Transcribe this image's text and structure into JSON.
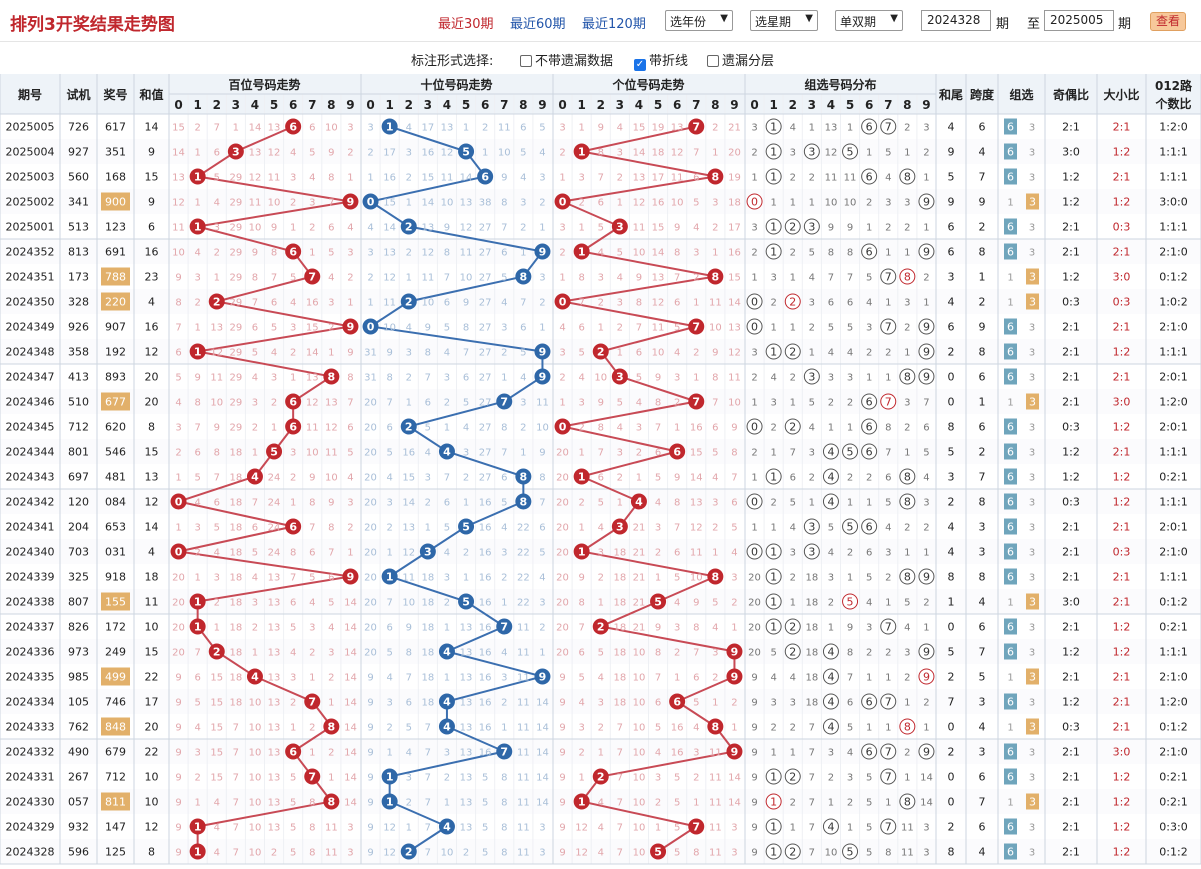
{
  "header": {
    "title": "排列3开奖结果走势图",
    "range_links": [
      "最近30期",
      "最近60期",
      "最近120期"
    ],
    "active_range": 0,
    "select_year": "选年份",
    "select_week": "选星期",
    "select_oddeven": "单双期",
    "from_label": "期",
    "to_label": "至",
    "to_label2": "期",
    "from_value": "2024328",
    "to_value": "2025005",
    "query_button": "查看"
  },
  "options": {
    "label": "标注形式选择:",
    "no_miss": "不带遗漏数据",
    "with_line": "带折线",
    "miss_layer": "遗漏分层"
  },
  "columns": {
    "period": "期号",
    "trial": "试机",
    "prize": "奖号",
    "sum": "和值",
    "hundreds": "百位号码走势",
    "tens": "十位号码走势",
    "units": "个位号码走势",
    "group": "组选号码分布",
    "sum_tail": "和尾",
    "span": "跨度",
    "group_type": "组选",
    "odd_even": "奇偶比",
    "big_small": "大小比",
    "mod3": "012路",
    "mod3_sub": "个数比"
  },
  "digits": [
    "0",
    "1",
    "2",
    "3",
    "4",
    "5",
    "6",
    "7",
    "8",
    "9"
  ],
  "chart_data": {
    "type": "table",
    "rows": [
      {
        "p": "2025005",
        "t": "726",
        "n": "617",
        "s": "14",
        "gt": "6",
        "oe": "2:1",
        "bs": "2:1",
        "m": "1:2:0"
      },
      {
        "p": "2025004",
        "t": "927",
        "n": "351",
        "s": "9",
        "gt": "6",
        "oe": "3:0",
        "bs": "1:2",
        "m": "1:1:1"
      },
      {
        "p": "2025003",
        "t": "560",
        "n": "168",
        "s": "15",
        "gt": "6",
        "oe": "1:2",
        "bs": "2:1",
        "m": "1:1:1"
      },
      {
        "p": "2025002",
        "t": "341",
        "n": "900",
        "s": "9",
        "gt": "3",
        "oe": "1:2",
        "bs": "1:2",
        "m": "3:0:0"
      },
      {
        "p": "2025001",
        "t": "513",
        "n": "123",
        "s": "6",
        "gt": "6",
        "oe": "2:1",
        "bs": "0:3",
        "m": "1:1:1"
      },
      {
        "p": "2024352",
        "t": "813",
        "n": "691",
        "s": "16",
        "gt": "6",
        "oe": "2:1",
        "bs": "2:1",
        "m": "2:1:0"
      },
      {
        "p": "2024351",
        "t": "173",
        "n": "788",
        "s": "23",
        "gt": "3",
        "oe": "1:2",
        "bs": "3:0",
        "m": "0:1:2"
      },
      {
        "p": "2024350",
        "t": "328",
        "n": "220",
        "s": "4",
        "gt": "3",
        "oe": "0:3",
        "bs": "0:3",
        "m": "1:0:2"
      },
      {
        "p": "2024349",
        "t": "926",
        "n": "907",
        "s": "16",
        "gt": "6",
        "oe": "2:1",
        "bs": "2:1",
        "m": "2:1:0"
      },
      {
        "p": "2024348",
        "t": "358",
        "n": "192",
        "s": "12",
        "gt": "6",
        "oe": "2:1",
        "bs": "1:2",
        "m": "1:1:1"
      },
      {
        "p": "2024347",
        "t": "413",
        "n": "893",
        "s": "20",
        "gt": "6",
        "oe": "2:1",
        "bs": "2:1",
        "m": "2:0:1"
      },
      {
        "p": "2024346",
        "t": "510",
        "n": "677",
        "s": "20",
        "gt": "3",
        "oe": "2:1",
        "bs": "3:0",
        "m": "1:2:0"
      },
      {
        "p": "2024345",
        "t": "712",
        "n": "620",
        "s": "8",
        "gt": "6",
        "oe": "0:3",
        "bs": "1:2",
        "m": "2:0:1"
      },
      {
        "p": "2024344",
        "t": "801",
        "n": "546",
        "s": "15",
        "gt": "6",
        "oe": "1:2",
        "bs": "2:1",
        "m": "1:1:1"
      },
      {
        "p": "2024343",
        "t": "697",
        "n": "481",
        "s": "13",
        "gt": "6",
        "oe": "1:2",
        "bs": "1:2",
        "m": "0:2:1"
      },
      {
        "p": "2024342",
        "t": "120",
        "n": "084",
        "s": "12",
        "gt": "6",
        "oe": "0:3",
        "bs": "1:2",
        "m": "1:1:1"
      },
      {
        "p": "2024341",
        "t": "204",
        "n": "653",
        "s": "14",
        "gt": "6",
        "oe": "2:1",
        "bs": "2:1",
        "m": "2:0:1"
      },
      {
        "p": "2024340",
        "t": "703",
        "n": "031",
        "s": "4",
        "gt": "6",
        "oe": "2:1",
        "bs": "0:3",
        "m": "2:1:0"
      },
      {
        "p": "2024339",
        "t": "325",
        "n": "918",
        "s": "18",
        "gt": "6",
        "oe": "2:1",
        "bs": "2:1",
        "m": "1:1:1"
      },
      {
        "p": "2024338",
        "t": "807",
        "n": "155",
        "s": "11",
        "gt": "3",
        "oe": "3:0",
        "bs": "2:1",
        "m": "0:1:2"
      },
      {
        "p": "2024337",
        "t": "826",
        "n": "172",
        "s": "10",
        "gt": "6",
        "oe": "2:1",
        "bs": "1:2",
        "m": "0:2:1"
      },
      {
        "p": "2024336",
        "t": "973",
        "n": "249",
        "s": "15",
        "gt": "6",
        "oe": "1:2",
        "bs": "1:2",
        "m": "1:1:1"
      },
      {
        "p": "2024335",
        "t": "985",
        "n": "499",
        "s": "22",
        "gt": "3",
        "oe": "2:1",
        "bs": "2:1",
        "m": "2:1:0"
      },
      {
        "p": "2024334",
        "t": "105",
        "n": "746",
        "s": "17",
        "gt": "6",
        "oe": "1:2",
        "bs": "2:1",
        "m": "1:2:0"
      },
      {
        "p": "2024333",
        "t": "762",
        "n": "848",
        "s": "20",
        "gt": "3",
        "oe": "0:3",
        "bs": "2:1",
        "m": "0:1:2"
      },
      {
        "p": "2024332",
        "t": "490",
        "n": "679",
        "s": "22",
        "gt": "6",
        "oe": "2:1",
        "bs": "3:0",
        "m": "2:1:0"
      },
      {
        "p": "2024331",
        "t": "267",
        "n": "712",
        "s": "10",
        "gt": "6",
        "oe": "2:1",
        "bs": "1:2",
        "m": "0:2:1"
      },
      {
        "p": "2024330",
        "t": "057",
        "n": "811",
        "s": "10",
        "gt": "3",
        "oe": "2:1",
        "bs": "1:2",
        "m": "0:2:1"
      },
      {
        "p": "2024329",
        "t": "932",
        "n": "147",
        "s": "12",
        "gt": "6",
        "oe": "2:1",
        "bs": "1:2",
        "m": "0:3:0"
      },
      {
        "p": "2024328",
        "t": "596",
        "n": "125",
        "s": "8",
        "gt": "6",
        "oe": "2:1",
        "bs": "1:2",
        "m": "0:1:2"
      }
    ]
  },
  "colors": {
    "red": "#c0272d",
    "blue": "#2e67a8",
    "group_blue": "#6fa5bc",
    "group_orange": "#e2b06a",
    "header_bg": "#eef3f8",
    "line_red": "#c84a55",
    "line_blue": "#3b6fb0"
  }
}
